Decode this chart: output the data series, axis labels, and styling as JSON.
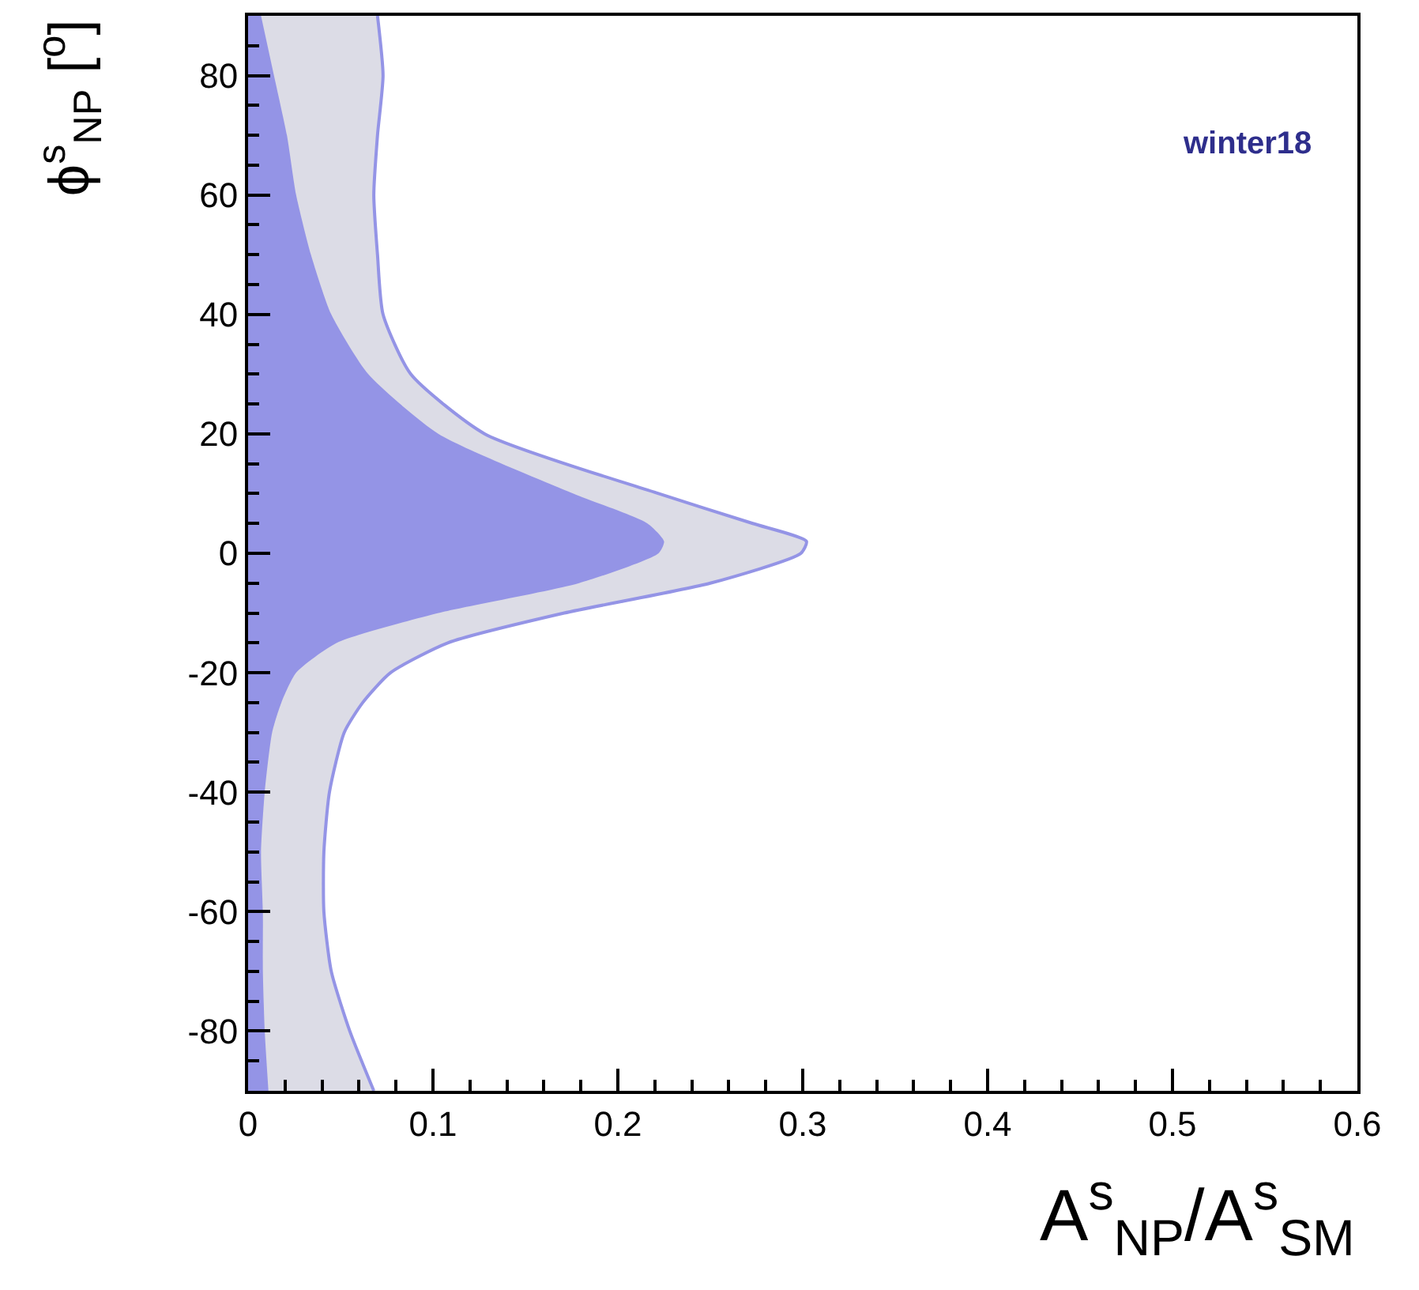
{
  "chart_data": {
    "type": "area",
    "orientation": "horizontal",
    "xlabel": "A$^{s}$$_{NP}$/A$^{s}$$_{SM}$",
    "ylabel": "ϕ$^{s}$$_{NP}$ [$^{o}$]",
    "annotations": [
      "winter18"
    ],
    "x": [
      90,
      80,
      70,
      60,
      50,
      40,
      30,
      20,
      10,
      5,
      2,
      0,
      -5,
      -10,
      -15,
      -20,
      -25,
      -30,
      -40,
      -50,
      -60,
      -70,
      -80,
      -90
    ],
    "series": [
      {
        "color": "#dcdce6",
        "line_style": "solid",
        "values": [
          0.07,
          0.073,
          0.07,
          0.068,
          0.07,
          0.073,
          0.088,
          0.128,
          0.222,
          0.273,
          0.302,
          0.299,
          0.25,
          0.171,
          0.108,
          0.077,
          0.062,
          0.052,
          0.044,
          0.041,
          0.041,
          0.045,
          0.055,
          0.068
        ]
      },
      {
        "color": "#9494e6",
        "line_style": "none",
        "values": [
          0.007,
          0.014,
          0.021,
          0.026,
          0.034,
          0.045,
          0.065,
          0.103,
          0.176,
          0.216,
          0.225,
          0.222,
          0.179,
          0.103,
          0.048,
          0.026,
          0.018,
          0.013,
          0.009,
          0.007,
          0.008,
          0.008,
          0.009,
          0.011
        ]
      }
    ],
    "xlim": [
      0,
      0.6
    ],
    "xticks": [
      0,
      0.1,
      0.2,
      0.3,
      0.4,
      0.5,
      0.6
    ],
    "ylim": [
      -90,
      90
    ],
    "yticks": [
      -80,
      -60,
      -40,
      -20,
      0,
      20,
      40,
      60,
      80
    ]
  }
}
